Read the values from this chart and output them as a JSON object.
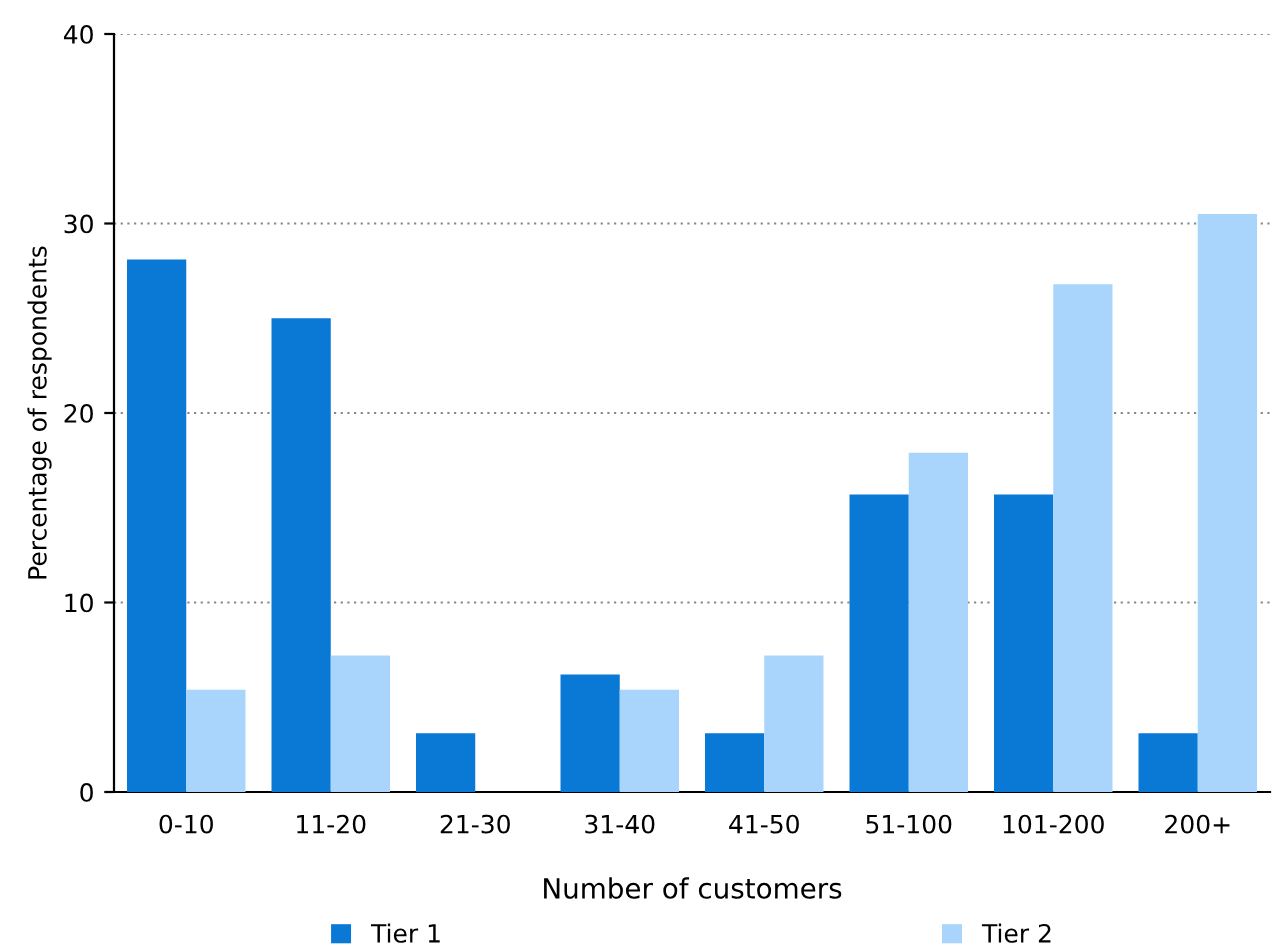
{
  "chart_data": {
    "type": "bar",
    "xlabel": "Number of customers",
    "ylabel": "Percentage of respondents",
    "categories": [
      "0-10",
      "11-20",
      "21-30",
      "31-40",
      "41-50",
      "51-100",
      "101-200",
      "200+"
    ],
    "series": [
      {
        "name": "Tier 1",
        "color": "#0a79d6",
        "values": [
          28.1,
          25,
          3.1,
          6.2,
          3.1,
          15.7,
          15.7,
          3.1
        ]
      },
      {
        "name": "Tier 2",
        "color": "#a9d5fc",
        "values": [
          5.4,
          7.2,
          null,
          5.4,
          7.2,
          17.9,
          26.8,
          30.5
        ]
      }
    ],
    "ylim": [
      0,
      40
    ],
    "yticks": [
      0,
      10,
      20,
      30,
      40
    ],
    "grid": "y",
    "legend": "bottom"
  }
}
